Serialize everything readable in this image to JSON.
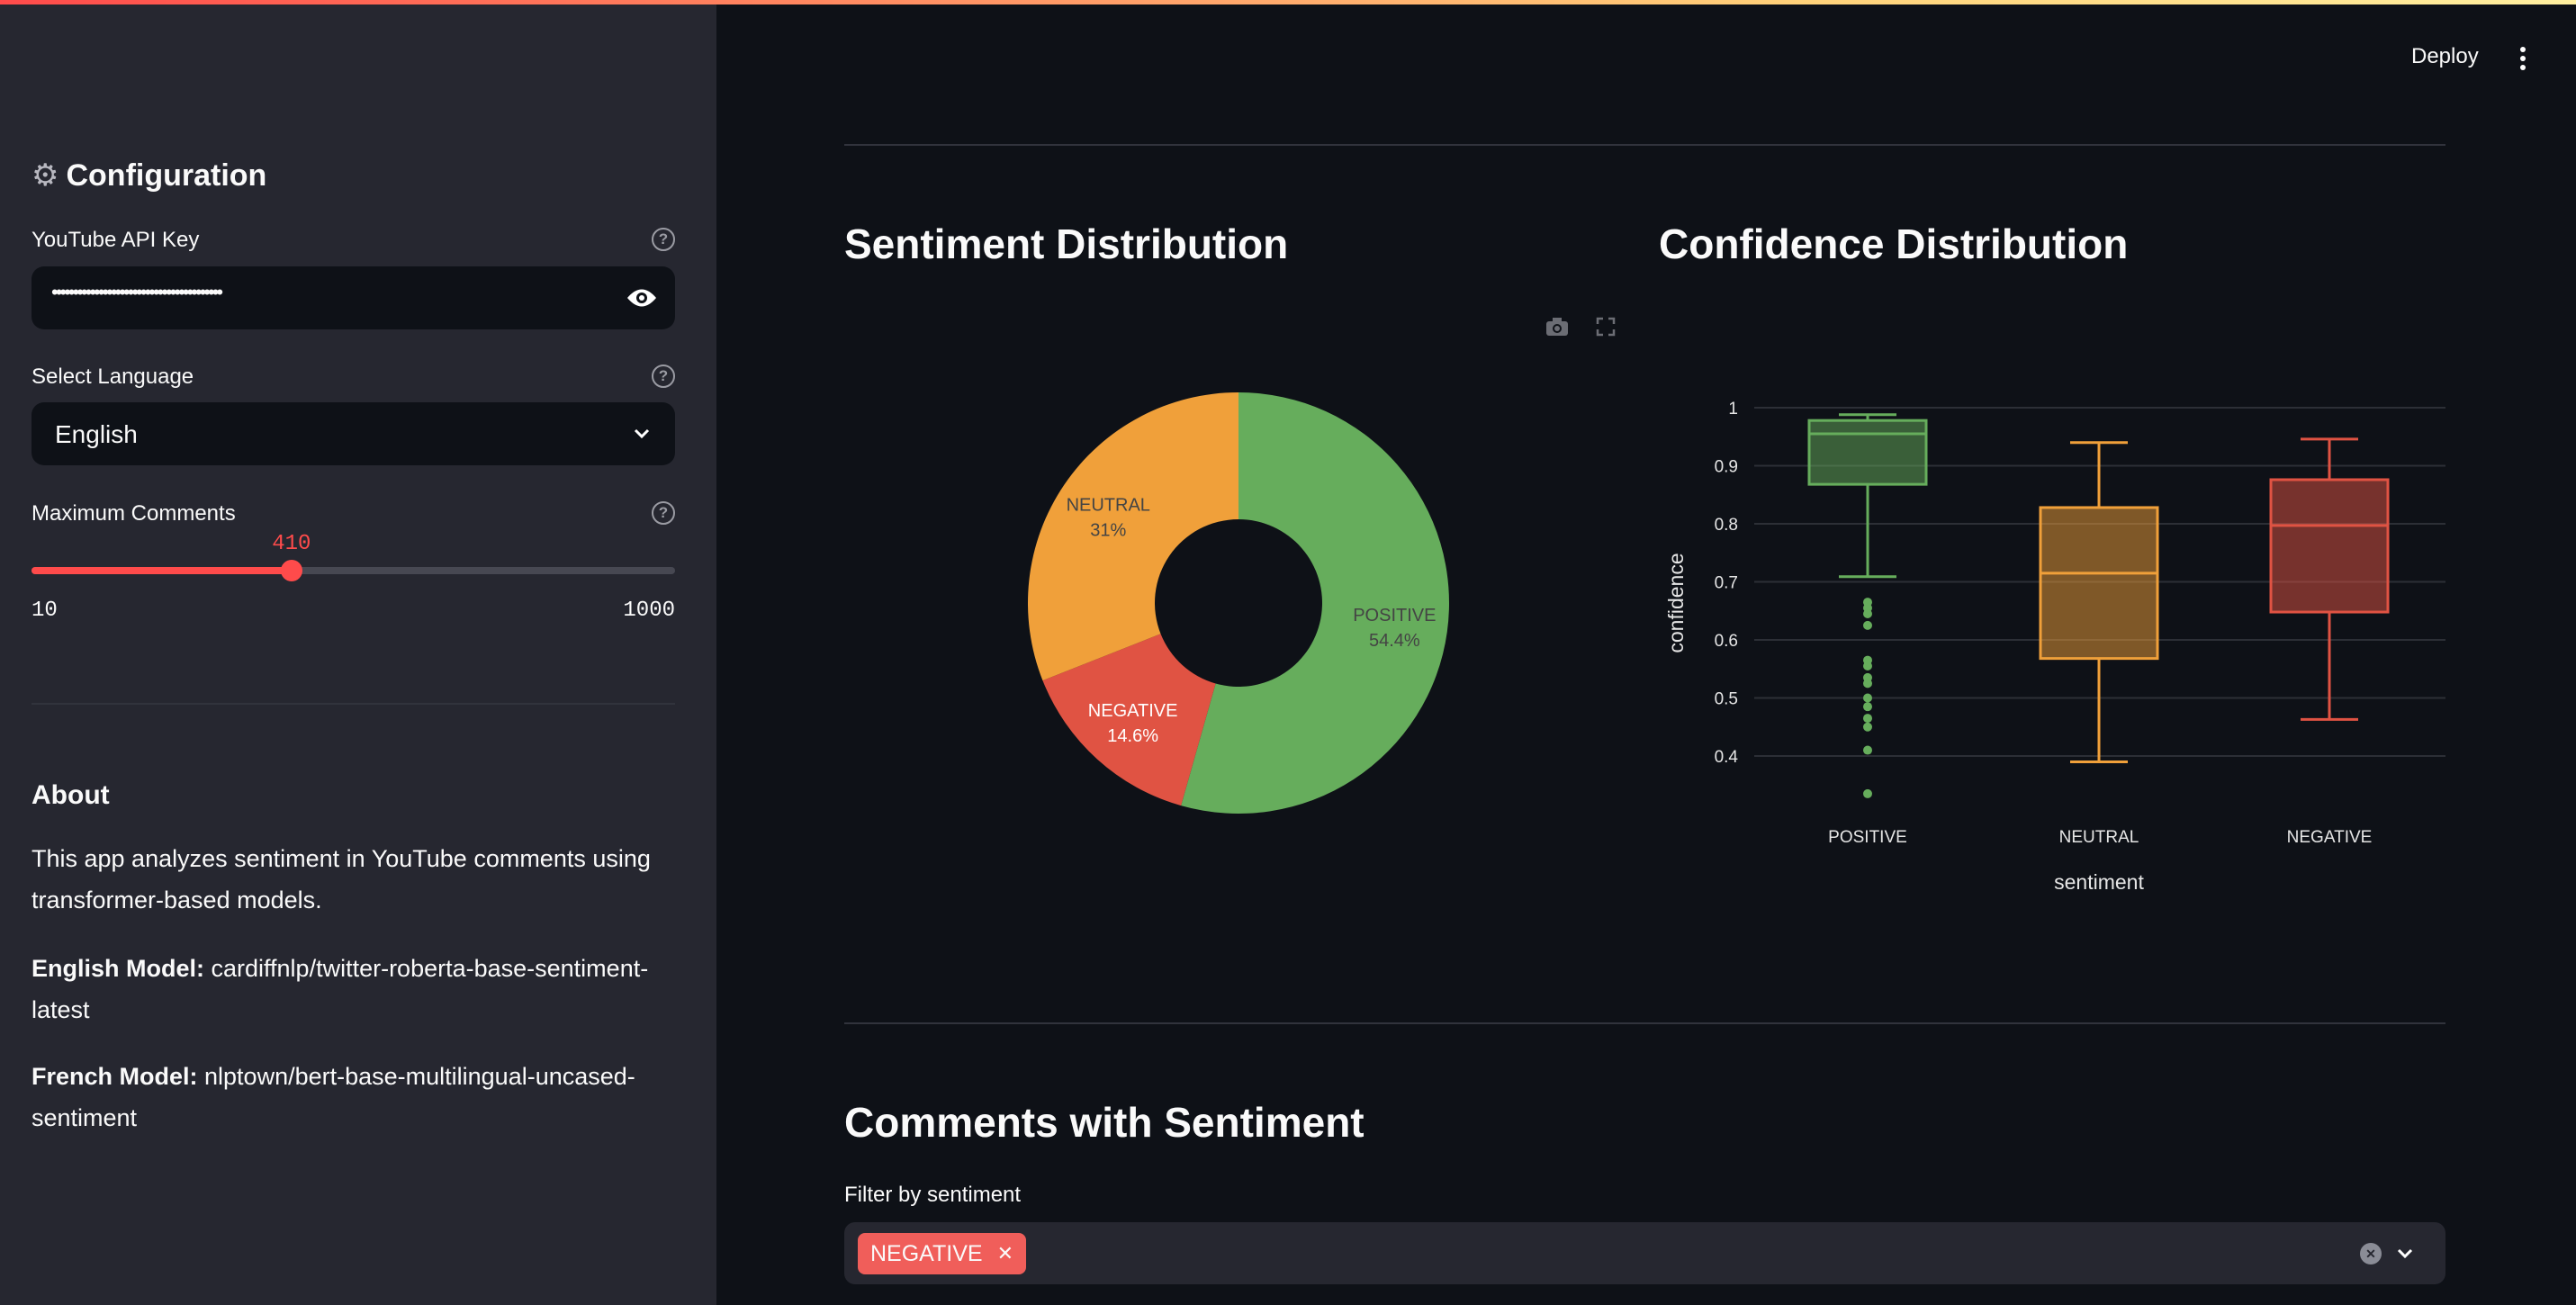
{
  "header": {
    "deploy_label": "Deploy",
    "menu_icon": "kebab-menu-icon"
  },
  "sidebar": {
    "title": "Configuration",
    "title_icon": "gear-icon",
    "api_key": {
      "label": "YouTube API Key",
      "value": "••••••••••••••••••••••••••••••••••••••••"
    },
    "language": {
      "label": "Select Language",
      "value": "English"
    },
    "max_comments": {
      "label": "Maximum Comments",
      "value": "410",
      "min": "10",
      "max": "1000",
      "fraction": 0.404
    },
    "about": {
      "title": "About",
      "description": "This app analyzes sentiment in YouTube comments using transformer-based models.",
      "english_label": "English Model:",
      "english_value": " cardiffnlp/twitter-roberta-base-sentiment-latest",
      "french_label": "French Model:",
      "french_value": " nlptown/bert-base-multilingual-uncased-sentiment"
    }
  },
  "main": {
    "sentiment_title": "Sentiment Distribution",
    "confidence_title": "Confidence Distribution",
    "comments_title": "Comments with Sentiment",
    "filter": {
      "label": "Filter by sentiment",
      "selected": [
        "NEGATIVE"
      ]
    }
  },
  "colors": {
    "POSITIVE": "#66ad5c",
    "NEUTRAL": "#f0a03a",
    "NEGATIVE": "#e05343",
    "accent": "#ff4b4b"
  },
  "chart_data": [
    {
      "type": "pie",
      "hole": true,
      "slices": [
        {
          "label": "POSITIVE",
          "value": 54.4,
          "text": "54.4%"
        },
        {
          "label": "NEGATIVE",
          "value": 14.6,
          "text": "14.6%"
        },
        {
          "label": "NEUTRAL",
          "value": 31,
          "text": "31%"
        }
      ]
    },
    {
      "type": "box",
      "xlabel": "sentiment",
      "ylabel": "confidence",
      "yticks": [
        "1",
        "0.9",
        "0.8",
        "0.7",
        "0.6",
        "0.5",
        "0.4"
      ],
      "grid": true,
      "categories": [
        "POSITIVE",
        "NEUTRAL",
        "NEGATIVE"
      ],
      "boxes": [
        {
          "name": "POSITIVE",
          "min": 0.709,
          "q1": 0.868,
          "median": 0.955,
          "q3": 0.978,
          "max": 0.988,
          "outliers": [
            0.665,
            0.655,
            0.645,
            0.625,
            0.565,
            0.555,
            0.535,
            0.525,
            0.5,
            0.485,
            0.465,
            0.45,
            0.41,
            0.335
          ]
        },
        {
          "name": "NEUTRAL",
          "min": 0.39,
          "q1": 0.568,
          "median": 0.715,
          "q3": 0.828,
          "max": 0.94
        },
        {
          "name": "NEGATIVE",
          "min": 0.463,
          "q1": 0.648,
          "median": 0.797,
          "q3": 0.876,
          "max": 0.946
        }
      ]
    }
  ]
}
